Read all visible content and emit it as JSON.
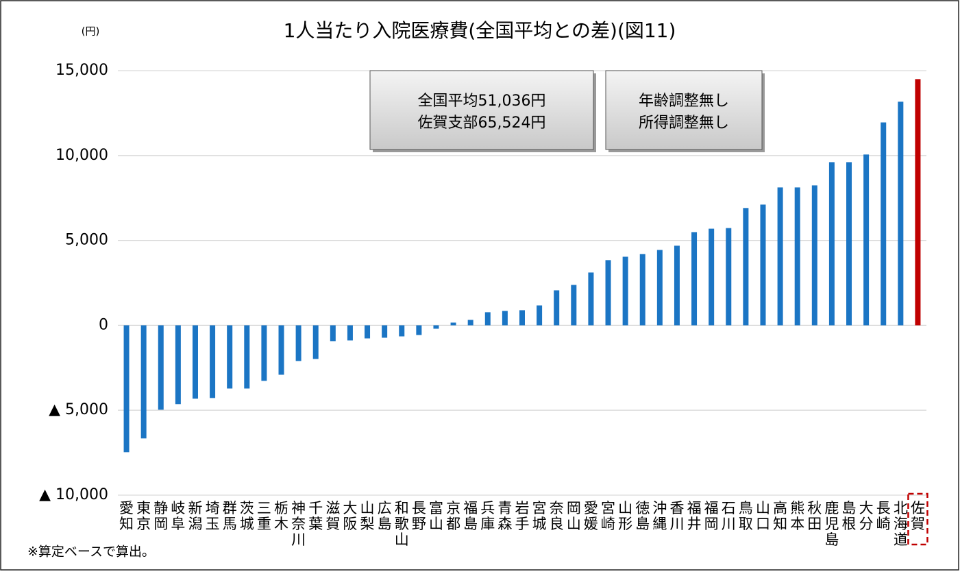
{
  "chart_data": {
    "type": "bar",
    "title": "1人当たり入院医療費(全国平均との差)(図11)",
    "y_unit": "(円)",
    "footnote": "※算定ベースで算出。",
    "annotations": [
      [
        "全国平均51,036円",
        "佐賀支部65,524円"
      ],
      [
        "年齢調整無し",
        "所得調整無し"
      ]
    ],
    "categories": [
      "愛知",
      "東京",
      "静岡",
      "岐阜",
      "新潟",
      "埼玉",
      "群馬",
      "茨城",
      "三重",
      "栃木",
      "神奈川",
      "千葉",
      "滋賀",
      "大阪",
      "山梨",
      "広島",
      "和歌山",
      "長野",
      "富山",
      "京都",
      "福島",
      "兵庫",
      "青森",
      "岩手",
      "宮城",
      "奈良",
      "岡山",
      "愛媛",
      "宮崎",
      "山形",
      "徳島",
      "沖縄",
      "香川",
      "福井",
      "福岡",
      "石川",
      "鳥取",
      "山口",
      "高知",
      "熊本",
      "秋田",
      "鹿児島",
      "島根",
      "大分",
      "長崎",
      "北海道",
      "佐賀"
    ],
    "values": [
      -7470,
      -6660,
      -4970,
      -4640,
      -4320,
      -4280,
      -3720,
      -3720,
      -3270,
      -2910,
      -2100,
      -1980,
      -930,
      -890,
      -770,
      -730,
      -650,
      -570,
      -200,
      160,
      320,
      770,
      850,
      890,
      1170,
      2060,
      2380,
      3110,
      3840,
      4040,
      4200,
      4440,
      4690,
      5490,
      5690,
      5730,
      6910,
      7110,
      8120,
      8120,
      8240,
      9610,
      9610,
      10060,
      11950,
      13170,
      14500
    ],
    "color": "#1b75c4",
    "highlight": {
      "category": "佐賀",
      "color": "#c00000"
    },
    "ylim": [
      -10000,
      15000
    ],
    "yticks": [
      {
        "value": 15000,
        "label": "15,000"
      },
      {
        "value": 10000,
        "label": "10,000"
      },
      {
        "value": 5000,
        "label": "5,000"
      },
      0,
      {
        "value": -5000,
        "label": "▲ 5,000"
      },
      {
        "value": -10000,
        "label": "▲ 10,000"
      }
    ],
    "grid": true
  }
}
